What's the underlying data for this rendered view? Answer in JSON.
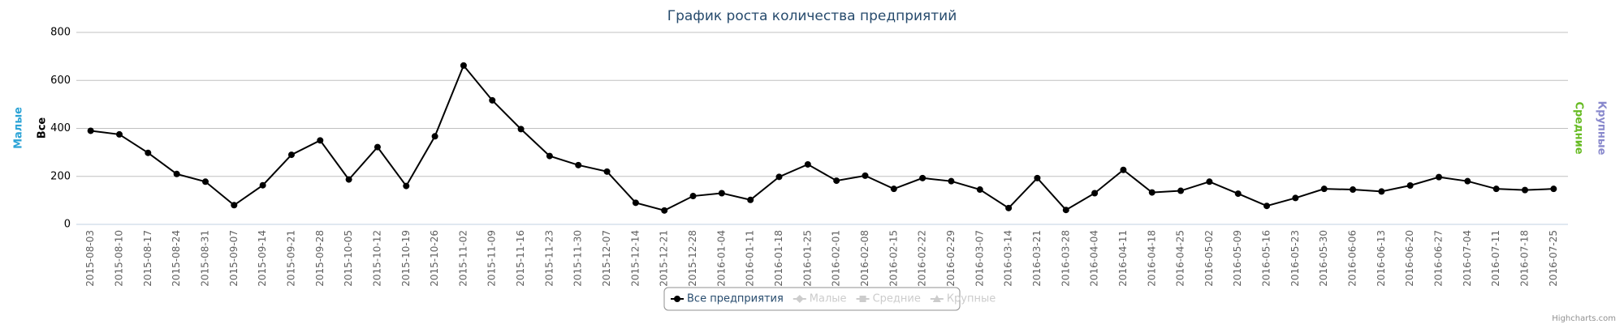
{
  "chart_data": {
    "type": "line",
    "title": "График роста количества предприятий",
    "categories": [
      "2015-08-03",
      "2015-08-10",
      "2015-08-17",
      "2015-08-24",
      "2015-08-31",
      "2015-09-07",
      "2015-09-14",
      "2015-09-21",
      "2015-09-28",
      "2015-10-05",
      "2015-10-12",
      "2015-10-19",
      "2015-10-26",
      "2015-11-02",
      "2015-11-09",
      "2015-11-16",
      "2015-11-23",
      "2015-11-30",
      "2015-12-07",
      "2015-12-14",
      "2015-12-21",
      "2015-12-28",
      "2016-01-04",
      "2016-01-11",
      "2016-01-18",
      "2016-01-25",
      "2016-02-01",
      "2016-02-08",
      "2016-02-15",
      "2016-02-22",
      "2016-02-29",
      "2016-03-07",
      "2016-03-14",
      "2016-03-21",
      "2016-03-28",
      "2016-04-04",
      "2016-04-11",
      "2016-04-18",
      "2016-04-25",
      "2016-05-02",
      "2016-05-09",
      "2016-05-16",
      "2016-05-23",
      "2016-05-30",
      "2016-06-06",
      "2016-06-13",
      "2016-06-20",
      "2016-06-27",
      "2016-07-04",
      "2016-07-11",
      "2016-07-18",
      "2016-07-25"
    ],
    "series": [
      {
        "name": "Все предприятия",
        "color": "#000000",
        "values": [
          390,
          375,
          298,
          210,
          178,
          80,
          163,
          290,
          350,
          187,
          322,
          160,
          367,
          662,
          517,
          397,
          285,
          247,
          220,
          90,
          58,
          118,
          130,
          102,
          198,
          250,
          182,
          203,
          148,
          193,
          180,
          145,
          68,
          193,
          60,
          130,
          227,
          133,
          140,
          178,
          128,
          77,
          110,
          148,
          145,
          137,
          162,
          197,
          180,
          148,
          143,
          148
        ]
      }
    ],
    "hidden_legend": [
      "Малые",
      "Средние",
      "Крупные"
    ],
    "left_axis_titles": [
      {
        "text": "Малые",
        "color": "#2ba3d6"
      },
      {
        "text": "Все",
        "color": "#000000"
      }
    ],
    "right_axis_titles": [
      {
        "text": "Средние",
        "color": "#66bb22"
      },
      {
        "text": "Крупные",
        "color": "#8888cc"
      }
    ],
    "ylim": [
      0,
      800
    ],
    "yticks": [
      0,
      200,
      400,
      600,
      800
    ],
    "grid": true,
    "credits": "Highcharts.com"
  }
}
